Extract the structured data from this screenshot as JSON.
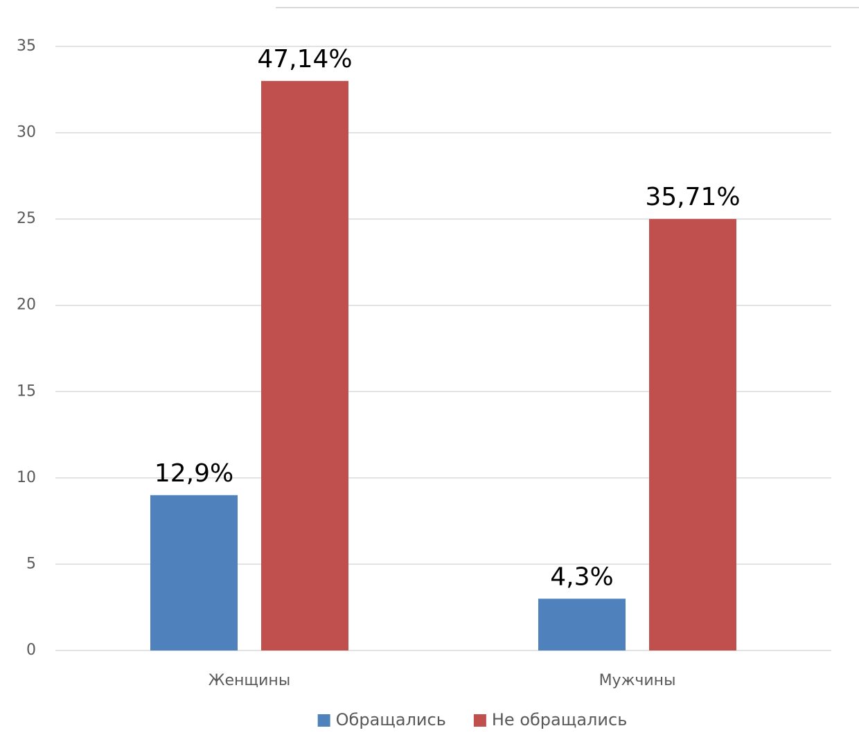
{
  "chart_data": {
    "type": "bar",
    "categories": [
      "Женщины",
      "Мужчины"
    ],
    "series": [
      {
        "name": "Обращались",
        "color": "#4f81bd",
        "values": [
          9,
          3
        ],
        "labels": [
          "12,9%",
          "4,3%"
        ]
      },
      {
        "name": "Не обращались",
        "color": "#c0504d",
        "values": [
          33,
          25
        ],
        "labels": [
          "47,14%",
          "35,71%"
        ]
      }
    ],
    "yticks": [
      0,
      5,
      10,
      15,
      20,
      25,
      30,
      35
    ],
    "ylim": [
      0,
      35
    ],
    "grid": true,
    "legend_position": "bottom",
    "colors": {
      "grid": "#d9d9d9",
      "axis_text": "#595959",
      "data_label": "#000000"
    }
  }
}
